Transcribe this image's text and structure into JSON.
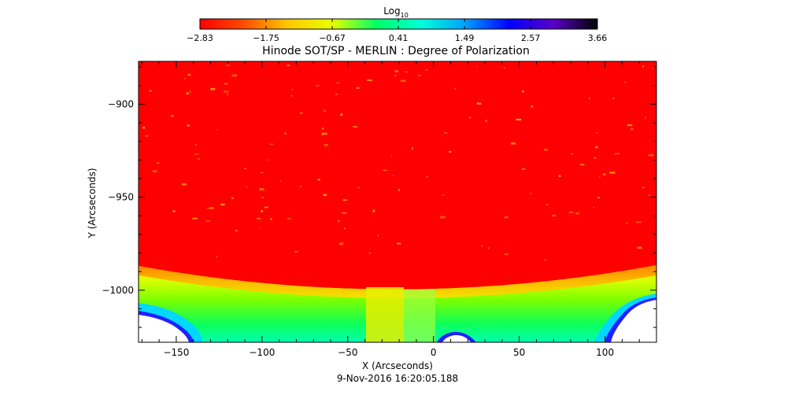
{
  "colorbar": {
    "label_base": "Log",
    "label_sub": "10",
    "ticks": [
      "-2.83",
      "-1.75",
      "-0.67",
      "0.41",
      "1.49",
      "2.57",
      "3.66"
    ],
    "colors": [
      "#ff0000",
      "#ff4d00",
      "#ffc800",
      "#e6ff00",
      "#00ff64",
      "#00ffd8",
      "#00a0ff",
      "#0000ff",
      "#5a00c8",
      "#000000"
    ]
  },
  "title": "Hinode SOT/SP - MERLIN : Degree of Polarization",
  "timestamp": "9-Nov-2016 16:20:05.188",
  "chart_data": {
    "type": "heatmap",
    "title": "Hinode SOT/SP - MERLIN : Degree of Polarization",
    "xlabel": "X (Arcseconds)",
    "ylabel": "Y (Arcseconds)",
    "xlim": [
      -172,
      130
    ],
    "ylim": [
      -1028,
      -877
    ],
    "xticks": [
      -150,
      -100,
      -50,
      0,
      50,
      100
    ],
    "yticks": [
      -900,
      -950,
      -1000
    ],
    "xtick_labels": [
      "−150",
      "−100",
      "−50",
      "0",
      "50",
      "100"
    ],
    "ytick_labels": [
      "−900",
      "−950",
      "−1000"
    ],
    "colorbar_range": [
      -2.83,
      3.66
    ],
    "colorbar_ticks": [
      -2.83,
      -1.75,
      -0.67,
      0.41,
      1.49,
      2.57,
      3.66
    ],
    "limb_y_center": -995,
    "limb_y_edge": -985,
    "regions": [
      "on-disk: low polarization (red)",
      "limb band: yellow",
      "off-limb: green to cyan",
      "corners: white/no data"
    ]
  }
}
